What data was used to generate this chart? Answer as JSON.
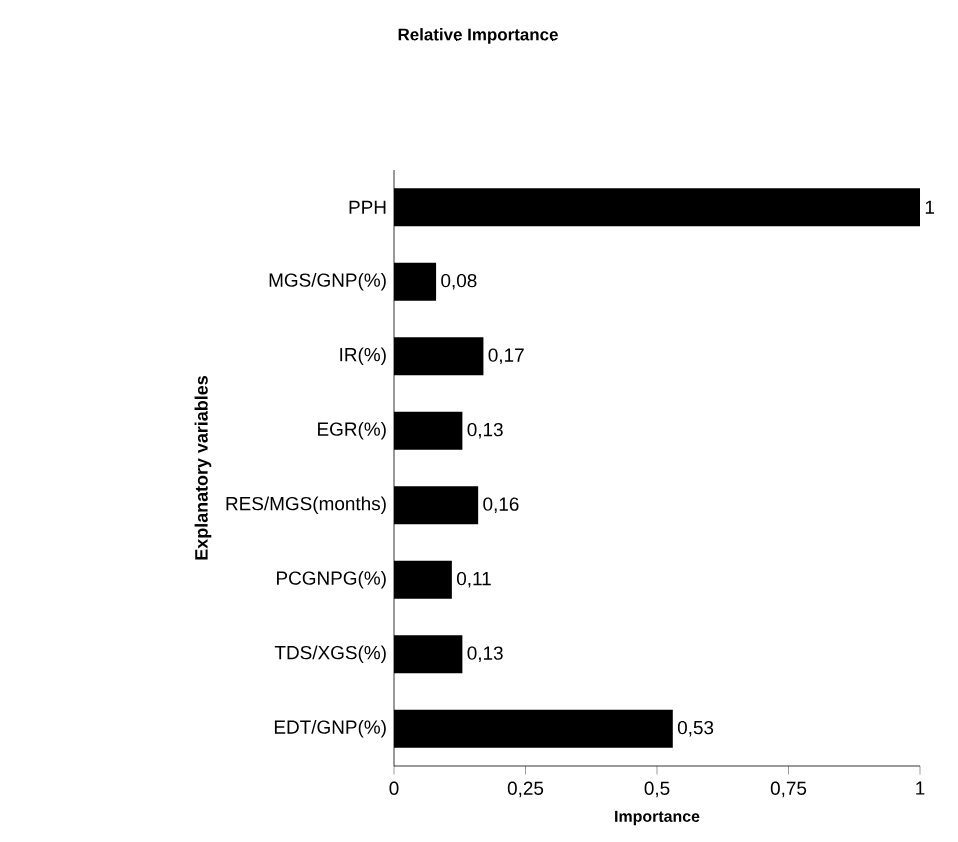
{
  "chart_data": {
    "type": "bar",
    "orientation": "horizontal",
    "title": "Relative Importance",
    "xlabel": "Importance",
    "ylabel": "Explanatory variables",
    "categories": [
      "PPH",
      "MGS/GNP(%)",
      "IR(%)",
      "EGR(%)",
      "RES/MGS(months)",
      "PCGNPG(%)",
      "TDS/XGS(%)",
      "EDT/GNP(%)"
    ],
    "values": [
      1,
      0.08,
      0.17,
      0.13,
      0.16,
      0.11,
      0.13,
      0.53
    ],
    "value_labels": [
      "1",
      "0,08",
      "0,17",
      "0,13",
      "0,16",
      "0,11",
      "0,13",
      "0,53"
    ],
    "color": "#000000",
    "xlim": [
      0,
      1
    ],
    "xticks": [
      0,
      {
        "value": 0.25,
        "label": "0,25"
      },
      {
        "value": 0.5,
        "label": "0,5"
      },
      {
        "value": 0.75,
        "label": "0,75"
      },
      1
    ]
  }
}
